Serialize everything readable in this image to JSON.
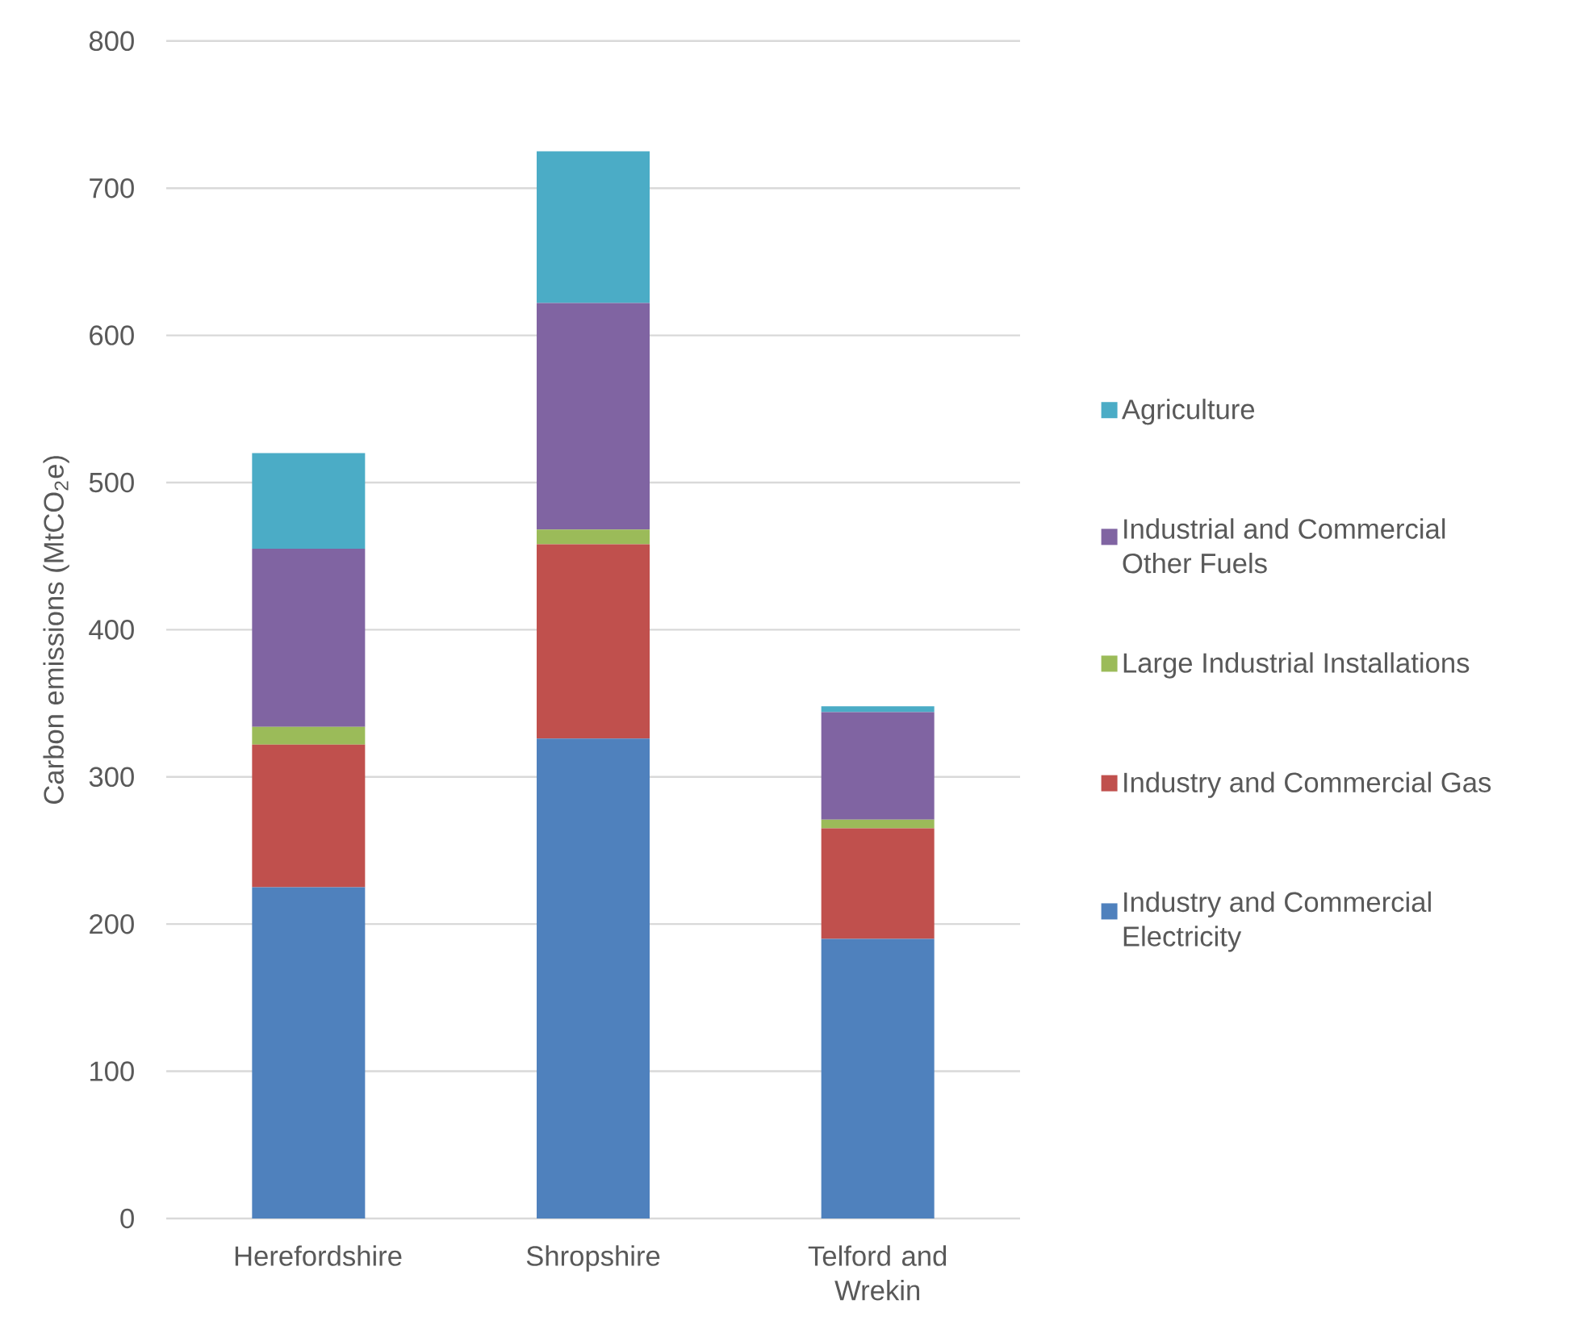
{
  "chart_data": {
    "type": "bar",
    "stacked": true,
    "ylabel": "Carbon emissions (MtCO$_{2}$e)",
    "categories": [
      "Herefordshire",
      "Shropshire",
      "Telford and Wrekin"
    ],
    "series": [
      {
        "name": "Industry and Commercial Electricity",
        "color": "#4f81bd",
        "values": [
          225,
          326,
          190
        ]
      },
      {
        "name": "Industry and Commercial Gas",
        "color": "#c0504d",
        "values": [
          97,
          132,
          75
        ]
      },
      {
        "name": "Large Industrial Installations",
        "color": "#9bbb59",
        "values": [
          12,
          10,
          6
        ]
      },
      {
        "name": "Industrial and Commercial Other Fuels",
        "color": "#8064a2",
        "values": [
          121,
          154,
          73
        ]
      },
      {
        "name": "Agriculture",
        "color": "#4bacc6",
        "values": [
          65,
          103,
          4
        ]
      }
    ],
    "ylim": [
      0,
      800
    ],
    "yticks": [
      0,
      100,
      200,
      300,
      400,
      500,
      600,
      700,
      800
    ],
    "grid": "y",
    "legend": "right"
  }
}
